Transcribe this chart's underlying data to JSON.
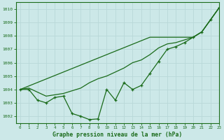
{
  "x": [
    0,
    1,
    2,
    3,
    4,
    5,
    6,
    7,
    8,
    9,
    10,
    11,
    12,
    13,
    14,
    15,
    16,
    17,
    18,
    19,
    20,
    21,
    22,
    23
  ],
  "line_zigzag": [
    1004.0,
    1004.0,
    1003.2,
    1003.0,
    1003.4,
    1003.5,
    1002.2,
    1002.0,
    1001.75,
    1001.8,
    1004.0,
    1003.2,
    1004.5,
    1004.0,
    1004.3,
    1005.2,
    1006.1,
    1007.0,
    1007.2,
    1007.5,
    1007.9,
    1008.3,
    1009.2,
    1010.1
  ],
  "line_smooth": [
    1004.0,
    1004.1,
    1003.8,
    1003.5,
    1003.6,
    1003.7,
    1003.9,
    1004.1,
    1004.5,
    1004.8,
    1005.0,
    1005.3,
    1005.6,
    1006.0,
    1006.2,
    1006.6,
    1007.1,
    1007.4,
    1007.5,
    1007.7,
    1007.9,
    1008.3,
    1009.2,
    1010.1
  ],
  "line_straight": [
    1004.0,
    1004.26,
    1004.52,
    1004.78,
    1005.04,
    1005.3,
    1005.56,
    1005.82,
    1006.08,
    1006.34,
    1006.6,
    1006.86,
    1007.12,
    1007.38,
    1007.64,
    1007.9,
    1007.9,
    1007.9,
    1007.9,
    1007.9,
    1007.9,
    1008.3,
    1009.2,
    1010.1
  ],
  "bg_color": "#cce8e8",
  "grid_color": "#aad4d4",
  "line_color": "#1a6b1a",
  "xlabel": "Graphe pression niveau de la mer (hPa)",
  "xlim": [
    -0.5,
    23
  ],
  "ylim": [
    1001.5,
    1010.5
  ],
  "yticks": [
    1002,
    1003,
    1004,
    1005,
    1006,
    1007,
    1008,
    1009,
    1010
  ],
  "xticks": [
    0,
    1,
    2,
    3,
    4,
    5,
    6,
    7,
    8,
    9,
    10,
    11,
    12,
    13,
    14,
    15,
    16,
    17,
    18,
    19,
    20,
    21,
    22,
    23
  ]
}
